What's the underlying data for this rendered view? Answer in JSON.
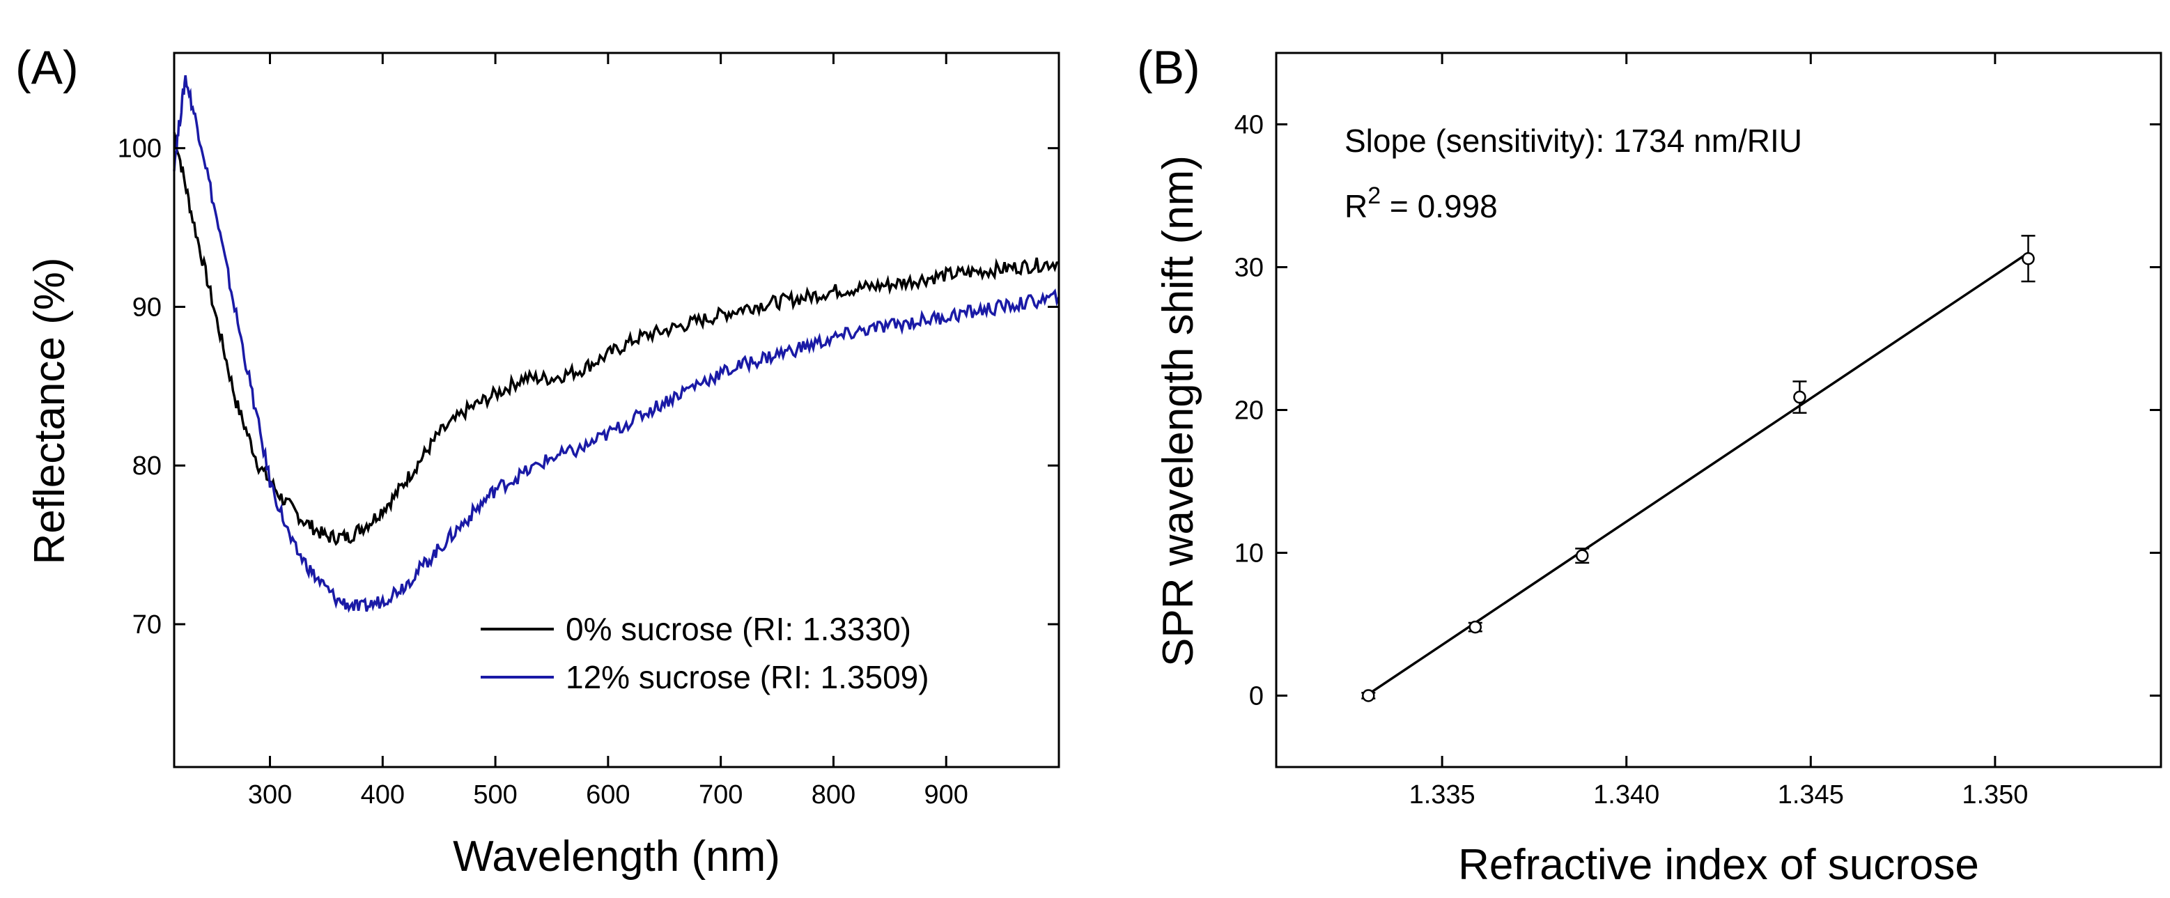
{
  "chart_data": [
    {
      "panel_label": "(A)",
      "type": "line",
      "xlabel": "Wavelength (nm)",
      "ylabel": "Reflectance (%)",
      "xlim": [
        215,
        1000
      ],
      "ylim": [
        61,
        106
      ],
      "xticks": [
        300,
        400,
        500,
        600,
        700,
        800,
        900
      ],
      "xtick_labels": [
        "300",
        "400",
        "500",
        "600",
        "700",
        "800",
        "900"
      ],
      "yticks": [
        70,
        80,
        90,
        100
      ],
      "ytick_labels": [
        "70",
        "80",
        "90",
        "100"
      ],
      "legend_position": "bottom-right",
      "series": [
        {
          "name": "0% sucrose (RI: 1.3330)",
          "color": "#000000",
          "x": [
            215,
            230,
            250,
            270,
            290,
            310,
            330,
            350,
            370,
            390,
            410,
            430,
            450,
            475,
            500,
            525,
            550,
            575,
            600,
            625,
            650,
            675,
            700,
            725,
            750,
            775,
            800,
            825,
            850,
            875,
            900,
            925,
            950,
            975,
            1000
          ],
          "y": [
            101,
            96,
            90,
            84,
            80,
            78,
            76.5,
            75.5,
            75.5,
            76.5,
            78,
            80,
            82,
            83.5,
            84.5,
            85.5,
            85.5,
            86,
            87,
            88,
            88.5,
            89,
            89.5,
            90,
            90.3,
            90.6,
            91,
            91.2,
            91.4,
            91.7,
            92,
            92.2,
            92.4,
            92.6,
            92.8
          ]
        },
        {
          "name": "12% sucrose (RI: 1.3509)",
          "color": "#1a1aa6",
          "x": [
            215,
            225,
            240,
            260,
            280,
            300,
            320,
            340,
            360,
            380,
            400,
            420,
            440,
            460,
            480,
            500,
            525,
            550,
            575,
            600,
            625,
            650,
            675,
            700,
            725,
            750,
            775,
            800,
            825,
            850,
            875,
            900,
            925,
            950,
            975,
            1000
          ],
          "y": [
            99,
            104.5,
            100,
            93,
            86,
            79,
            75,
            73,
            71.5,
            71,
            71.5,
            72.5,
            74,
            75.5,
            77,
            78.5,
            79.5,
            80.5,
            81,
            82,
            83,
            84,
            85,
            85.8,
            86.5,
            87,
            87.5,
            88,
            88.5,
            88.8,
            89.1,
            89.4,
            89.7,
            90,
            90.3,
            90.6
          ]
        }
      ]
    },
    {
      "panel_label": "(B)",
      "type": "scatter",
      "xlabel": "Refractive index of sucrose",
      "ylabel": "SPR wavelength shift (nm)",
      "xlim": [
        1.3305,
        1.3545
      ],
      "ylim": [
        -5,
        45
      ],
      "xticks": [
        1.335,
        1.34,
        1.345,
        1.35
      ],
      "xtick_labels": [
        "1.335",
        "1.340",
        "1.345",
        "1.350"
      ],
      "yticks": [
        0,
        10,
        20,
        30,
        40
      ],
      "ytick_labels": [
        "0",
        "10",
        "20",
        "30",
        "40"
      ],
      "points": {
        "x": [
          1.333,
          1.3359,
          1.3388,
          1.3447,
          1.3509
        ],
        "y": [
          0,
          4.8,
          9.8,
          20.9,
          30.6
        ],
        "err": [
          0.2,
          0.3,
          0.5,
          1.1,
          1.6
        ]
      },
      "fit_line": {
        "x": [
          1.333,
          1.3509
        ],
        "y": [
          0.1,
          31.0
        ]
      },
      "annotations": {
        "slope_text": "Slope (sensitivity): 1734 nm/RIU",
        "r2_prefix": "R",
        "r2_superscript": "2",
        "r2_value": " = 0.998"
      }
    }
  ]
}
